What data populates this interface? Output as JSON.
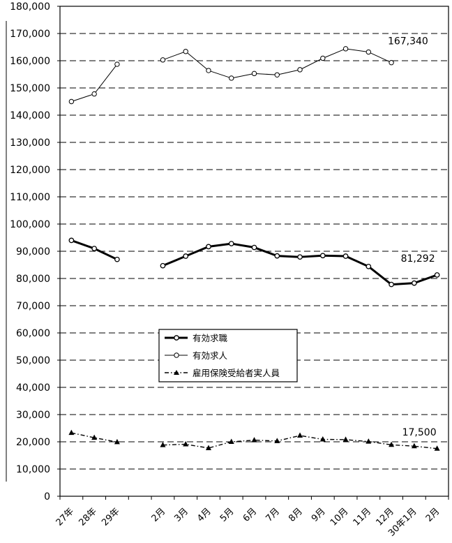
{
  "chart_data": {
    "type": "line",
    "title": "",
    "xlabel": "",
    "ylabel": "",
    "ylim": [
      0,
      180000
    ],
    "ytick_step": 10000,
    "y_tick_labels": [
      "0",
      "10,000",
      "20,000",
      "30,000",
      "40,000",
      "50,000",
      "60,000",
      "70,000",
      "80,000",
      "90,000",
      "100,000",
      "110,000",
      "120,000",
      "130,000",
      "140,000",
      "150,000",
      "160,000",
      "170,000",
      "180,000"
    ],
    "grid": "horizontal dashed",
    "legend_position": "center-left",
    "categories": [
      "27年",
      "28年",
      "29年",
      "",
      "2月",
      "3月",
      "4月",
      "5月",
      "6月",
      "7月",
      "8月",
      "9月",
      "10月",
      "11月",
      "12月",
      "30年1月",
      "2月"
    ],
    "series": [
      {
        "name": "有効求職",
        "style": "thick line, open circle markers",
        "color": "#000000",
        "values": [
          94000,
          91000,
          87000,
          null,
          84700,
          88200,
          91700,
          92800,
          91400,
          88300,
          87900,
          88400,
          88200,
          84400,
          77800,
          78300,
          81292
        ],
        "end_label": "81,292"
      },
      {
        "name": "有効求人",
        "style": "thin line, open circle markers",
        "color": "#000000",
        "values": [
          145000,
          147800,
          158700,
          null,
          160300,
          163400,
          156400,
          153600,
          155300,
          154800,
          156700,
          160900,
          164400,
          163200,
          159300,
          null,
          null
        ],
        "end_label": "167,340"
      },
      {
        "name": "雇用保険受給者実人員",
        "style": "dash-dot line, filled triangle markers",
        "color": "#000000",
        "values": [
          23300,
          21500,
          19900,
          null,
          18800,
          19100,
          17700,
          20000,
          20600,
          20300,
          22300,
          20900,
          20800,
          20100,
          18900,
          18400,
          17500
        ],
        "end_label": "17,500"
      }
    ]
  }
}
